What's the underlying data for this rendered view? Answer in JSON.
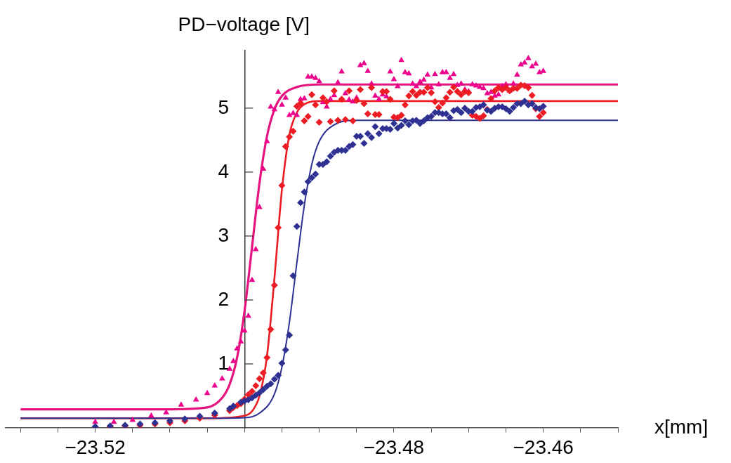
{
  "chart_data": {
    "type": "scatter",
    "xlabel": "x[mm]",
    "ylabel": "PD−voltage [V]",
    "xlim": [
      -23.532,
      -23.45
    ],
    "ylim": [
      0,
      5.9
    ],
    "xticks": [
      {
        "value": -23.53,
        "label": null
      },
      {
        "value": -23.525,
        "label": null
      },
      {
        "value": -23.52,
        "label": "−23.52"
      },
      {
        "value": -23.515,
        "label": null
      },
      {
        "value": -23.51,
        "label": null
      },
      {
        "value": -23.505,
        "label": null
      },
      {
        "value": -23.5,
        "label": null
      },
      {
        "value": -23.495,
        "label": null
      },
      {
        "value": -23.49,
        "label": null
      },
      {
        "value": -23.485,
        "label": null
      },
      {
        "value": -23.48,
        "label": "−23.48"
      },
      {
        "value": -23.475,
        "label": null
      },
      {
        "value": -23.47,
        "label": null
      },
      {
        "value": -23.465,
        "label": null
      },
      {
        "value": -23.46,
        "label": "−23.46"
      },
      {
        "value": -23.455,
        "label": null
      },
      {
        "value": -23.45,
        "label": null
      }
    ],
    "yticks": [
      1,
      2,
      3,
      4,
      5
    ],
    "grid": false,
    "legend": false,
    "series": [
      {
        "type": "line",
        "marker": "none",
        "color": "#e6147f",
        "x": [
          -23.53,
          -23.51,
          -23.505,
          -23.503,
          -23.502,
          -23.501,
          -23.5,
          -23.499,
          -23.498,
          -23.497,
          -23.496,
          -23.495,
          -23.493,
          -23.49,
          -23.45
        ],
        "values": [
          0.29,
          0.29,
          0.32,
          0.47,
          0.68,
          1.1,
          1.83,
          2.83,
          3.83,
          4.56,
          4.98,
          5.19,
          5.33,
          5.37,
          5.37
        ]
      },
      {
        "type": "line",
        "marker": "none",
        "color": "#ed1c24",
        "x": [
          -23.53,
          -23.505,
          -23.5,
          -23.499,
          -23.498,
          -23.497,
          -23.496,
          -23.495,
          -23.494,
          -23.493,
          -23.492,
          -23.49,
          -23.45
        ],
        "values": [
          0.15,
          0.15,
          0.19,
          0.26,
          0.5,
          1.12,
          2.34,
          3.72,
          4.58,
          4.93,
          5.06,
          5.11,
          5.11
        ]
      },
      {
        "type": "line",
        "marker": "none",
        "color": "#2e3192",
        "x": [
          -23.53,
          -23.505,
          -23.5,
          -23.498,
          -23.496,
          -23.495,
          -23.494,
          -23.493,
          -23.492,
          -23.491,
          -23.49,
          -23.488,
          -23.485,
          -23.45
        ],
        "values": [
          0.15,
          0.15,
          0.16,
          0.23,
          0.53,
          0.95,
          1.65,
          2.58,
          3.48,
          4.12,
          4.48,
          4.74,
          4.81,
          4.81
        ]
      },
      {
        "type": "scatter",
        "marker": "triangle",
        "color": "#ec008c",
        "x": [
          -23.52,
          -23.5175,
          -23.515,
          -23.5125,
          -23.5105,
          -23.5085,
          -23.5065,
          -23.505,
          -23.504,
          -23.503,
          -23.502,
          -23.5015,
          -23.501,
          -23.5005,
          -23.5,
          -23.4995,
          -23.499,
          -23.4985,
          -23.498,
          -23.4975,
          -23.497,
          -23.4965,
          -23.496,
          -23.4955,
          -23.495,
          -23.4945,
          -23.494,
          -23.4935,
          -23.493,
          -23.4925,
          -23.492,
          -23.4915,
          -23.491,
          -23.4905,
          -23.49,
          -23.4895,
          -23.489,
          -23.4885,
          -23.488,
          -23.4875,
          -23.487,
          -23.4865,
          -23.486,
          -23.4855,
          -23.485,
          -23.4845,
          -23.484,
          -23.4835,
          -23.483,
          -23.4825,
          -23.482,
          -23.4815,
          -23.481,
          -23.4805,
          -23.48,
          -23.4795,
          -23.479,
          -23.4785,
          -23.478,
          -23.4775,
          -23.477,
          -23.4765,
          -23.476,
          -23.4755,
          -23.475,
          -23.4745,
          -23.474,
          -23.4735,
          -23.473,
          -23.4725,
          -23.472,
          -23.4715,
          -23.471,
          -23.4705,
          -23.47,
          -23.4695,
          -23.469,
          -23.4685,
          -23.468,
          -23.4675,
          -23.467,
          -23.4665,
          -23.466,
          -23.4655,
          -23.465,
          -23.4645,
          -23.464,
          -23.4635,
          -23.463,
          -23.4625,
          -23.462,
          -23.4615,
          -23.461,
          -23.4605,
          -23.46
        ],
        "values": [
          0.09,
          0.09,
          0.12,
          0.19,
          0.24,
          0.36,
          0.44,
          0.54,
          0.66,
          0.77,
          0.92,
          1.04,
          1.24,
          1.35,
          1.52,
          1.75,
          2.31,
          2.79,
          3.45,
          4.05,
          4.48,
          5.02,
          4.98,
          5.25,
          5.05,
          5.16,
          4.89,
          4.92,
          4.89,
          5.14,
          5.15,
          5.49,
          5.49,
          5.47,
          5.42,
          5.09,
          5.02,
          5.14,
          5.2,
          5.4,
          5.57,
          5.23,
          5.13,
          5.1,
          5.16,
          5.67,
          5.7,
          5.58,
          5.38,
          5.19,
          5.14,
          5.21,
          5.18,
          5.57,
          5.45,
          5.34,
          5.75,
          5.56,
          5.54,
          5.38,
          5.34,
          5.41,
          5.44,
          5.52,
          5.32,
          5.53,
          5.37,
          5.56,
          5.56,
          5.47,
          5.53,
          5.36,
          5.38,
          5.29,
          5.26,
          5.37,
          5.35,
          5.33,
          5.31,
          5.23,
          5.25,
          5.19,
          5.21,
          5.34,
          5.37,
          5.27,
          5.38,
          5.52,
          5.68,
          5.71,
          5.78,
          5.65,
          5.69,
          5.56,
          5.58
        ]
      },
      {
        "type": "scatter",
        "marker": "diamond",
        "color": "#ed1c24",
        "x": [
          -23.52,
          -23.518,
          -23.516,
          -23.514,
          -23.512,
          -23.51,
          -23.508,
          -23.506,
          -23.504,
          -23.502,
          -23.5015,
          -23.501,
          -23.5005,
          -23.5,
          -23.4995,
          -23.499,
          -23.4985,
          -23.498,
          -23.4975,
          -23.497,
          -23.4965,
          -23.496,
          -23.4955,
          -23.495,
          -23.4945,
          -23.494,
          -23.4935,
          -23.493,
          -23.4925,
          -23.492,
          -23.4915,
          -23.491,
          -23.4905,
          -23.49,
          -23.4895,
          -23.489,
          -23.4885,
          -23.488,
          -23.4875,
          -23.487,
          -23.4865,
          -23.486,
          -23.4855,
          -23.485,
          -23.4845,
          -23.484,
          -23.4835,
          -23.483,
          -23.4825,
          -23.482,
          -23.4815,
          -23.481,
          -23.4805,
          -23.48,
          -23.4795,
          -23.479,
          -23.4785,
          -23.478,
          -23.4775,
          -23.477,
          -23.4765,
          -23.476,
          -23.4755,
          -23.475,
          -23.4745,
          -23.474,
          -23.4735,
          -23.473,
          -23.4725,
          -23.472,
          -23.4715,
          -23.471,
          -23.4705,
          -23.47,
          -23.4695,
          -23.469,
          -23.4685,
          -23.468,
          -23.4675,
          -23.467,
          -23.4665,
          -23.466,
          -23.4655,
          -23.465,
          -23.4645,
          -23.464,
          -23.4635,
          -23.463,
          -23.4625,
          -23.462,
          -23.4615,
          -23.461,
          -23.4605,
          -23.46
        ],
        "values": [
          0.01,
          0.02,
          0.03,
          0.04,
          0.06,
          0.08,
          0.11,
          0.15,
          0.2,
          0.27,
          0.32,
          0.35,
          0.38,
          0.45,
          0.52,
          0.57,
          0.66,
          0.77,
          0.86,
          1.1,
          1.54,
          2.23,
          3.13,
          3.79,
          4.4,
          4.55,
          4.64,
          5.03,
          5.08,
          4.8,
          4.87,
          5.21,
          5.05,
          4.78,
          5.16,
          5.1,
          4.79,
          5.27,
          4.81,
          5.14,
          4.82,
          5.27,
          4.8,
          5.12,
          5.29,
          5.07,
          4.91,
          5.32,
          4.9,
          4.9,
          5.26,
          5.26,
          5.14,
          4.86,
          4.85,
          4.89,
          5.05,
          5.19,
          5.26,
          5.2,
          5.25,
          5.25,
          5.32,
          5.24,
          5.1,
          5.01,
          5.08,
          5.16,
          5.25,
          5.33,
          5.26,
          5.21,
          5.26,
          5.24,
          4.89,
          4.87,
          4.84,
          4.88,
          4.98,
          5.15,
          5.27,
          5.32,
          5.29,
          5.32,
          5.27,
          5.31,
          5.31,
          5.36,
          5.35,
          5.32,
          5.2,
          4.99,
          4.87,
          4.93
        ]
      },
      {
        "type": "scatter",
        "marker": "diamond",
        "color": "#2e3192",
        "x": [
          -23.52,
          -23.518,
          -23.516,
          -23.514,
          -23.512,
          -23.51,
          -23.508,
          -23.506,
          -23.504,
          -23.502,
          -23.5015,
          -23.5005,
          -23.5,
          -23.4995,
          -23.499,
          -23.4985,
          -23.498,
          -23.4975,
          -23.497,
          -23.4965,
          -23.496,
          -23.4955,
          -23.495,
          -23.4945,
          -23.494,
          -23.4935,
          -23.493,
          -23.4925,
          -23.492,
          -23.4915,
          -23.491,
          -23.4905,
          -23.49,
          -23.4895,
          -23.489,
          -23.4885,
          -23.488,
          -23.4875,
          -23.487,
          -23.4865,
          -23.486,
          -23.4855,
          -23.485,
          -23.4845,
          -23.484,
          -23.4835,
          -23.483,
          -23.4825,
          -23.482,
          -23.4815,
          -23.481,
          -23.4805,
          -23.48,
          -23.4795,
          -23.479,
          -23.4785,
          -23.478,
          -23.4775,
          -23.477,
          -23.4765,
          -23.476,
          -23.4755,
          -23.475,
          -23.4745,
          -23.474,
          -23.4735,
          -23.473,
          -23.4725,
          -23.472,
          -23.4715,
          -23.471,
          -23.4705,
          -23.47,
          -23.4695,
          -23.469,
          -23.4685,
          -23.468,
          -23.4675,
          -23.467,
          -23.4665,
          -23.466,
          -23.4655,
          -23.465,
          -23.4645,
          -23.464,
          -23.4635,
          -23.463,
          -23.4625,
          -23.462,
          -23.4615,
          -23.461,
          -23.4605,
          -23.46
        ],
        "values": [
          0.02,
          0.03,
          0.04,
          0.06,
          0.08,
          0.11,
          0.14,
          0.18,
          0.23,
          0.3,
          0.34,
          0.4,
          0.42,
          0.44,
          0.47,
          0.51,
          0.55,
          0.6,
          0.65,
          0.69,
          0.76,
          0.82,
          1.01,
          1.22,
          1.45,
          2.38,
          3.15,
          3.52,
          3.69,
          3.85,
          3.91,
          3.97,
          4.12,
          4.12,
          4.16,
          4.25,
          4.31,
          4.34,
          4.34,
          4.34,
          4.4,
          4.43,
          4.56,
          4.56,
          4.45,
          4.6,
          4.54,
          4.71,
          4.6,
          4.68,
          4.68,
          4.67,
          4.76,
          4.69,
          4.73,
          4.8,
          4.74,
          4.8,
          4.81,
          4.76,
          4.8,
          4.85,
          4.87,
          4.93,
          4.93,
          4.91,
          4.91,
          4.85,
          4.96,
          4.98,
          4.93,
          5.0,
          4.95,
          4.95,
          5.01,
          5.02,
          5.05,
          4.97,
          4.95,
          5.0,
          5.02,
          5.02,
          4.99,
          4.95,
          5.01,
          5.07,
          5.07,
          5.11,
          5.05,
          5.07,
          5.01,
          4.99,
          5.03
        ]
      }
    ]
  }
}
